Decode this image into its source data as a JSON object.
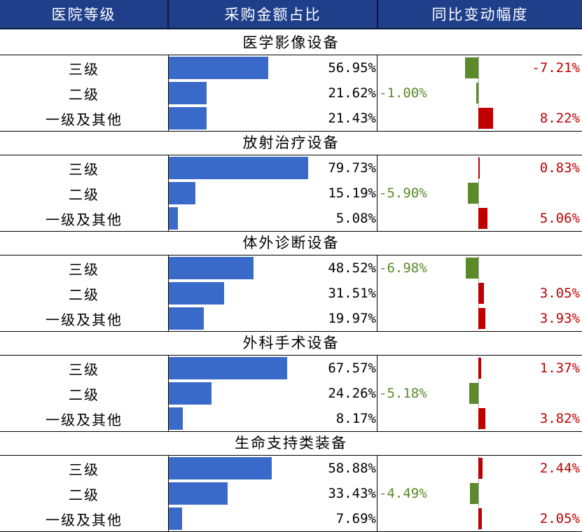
{
  "headers": [
    "医院等级",
    "采购金额占比",
    "同比变动幅度"
  ],
  "colors": {
    "header_bg": "#1f3f8a",
    "share_bar": "#3a6ac9",
    "positive": "#c00000",
    "negative": "#5a8a2a"
  },
  "chart_data": {
    "type": "table",
    "share_max": 100,
    "change_range": [
      -10,
      10
    ],
    "groups": [
      {
        "name": "医学影像设备",
        "rows": [
          {
            "label": "三级",
            "share": 56.95,
            "share_label": "56.95%",
            "change": -7.21,
            "change_label": "-7.21%"
          },
          {
            "label": "二级",
            "share": 21.62,
            "share_label": "21.62%",
            "change": -1.0,
            "change_label": "-1.00%"
          },
          {
            "label": "一级及其他",
            "share": 21.43,
            "share_label": "21.43%",
            "change": 8.22,
            "change_label": "8.22%"
          }
        ]
      },
      {
        "name": "放射治疗设备",
        "rows": [
          {
            "label": "三级",
            "share": 79.73,
            "share_label": "79.73%",
            "change": 0.83,
            "change_label": "0.83%"
          },
          {
            "label": "二级",
            "share": 15.19,
            "share_label": "15.19%",
            "change": -5.9,
            "change_label": "-5.90%"
          },
          {
            "label": "一级及其他",
            "share": 5.08,
            "share_label": "5.08%",
            "change": 5.06,
            "change_label": "5.06%"
          }
        ]
      },
      {
        "name": "体外诊断设备",
        "rows": [
          {
            "label": "三级",
            "share": 48.52,
            "share_label": "48.52%",
            "change": -6.98,
            "change_label": "-6.98%"
          },
          {
            "label": "二级",
            "share": 31.51,
            "share_label": "31.51%",
            "change": 3.05,
            "change_label": "3.05%"
          },
          {
            "label": "一级及其他",
            "share": 19.97,
            "share_label": "19.97%",
            "change": 3.93,
            "change_label": "3.93%"
          }
        ]
      },
      {
        "name": "外科手术设备",
        "rows": [
          {
            "label": "三级",
            "share": 67.57,
            "share_label": "67.57%",
            "change": 1.37,
            "change_label": "1.37%"
          },
          {
            "label": "二级",
            "share": 24.26,
            "share_label": "24.26%",
            "change": -5.18,
            "change_label": "-5.18%"
          },
          {
            "label": "一级及其他",
            "share": 8.17,
            "share_label": "8.17%",
            "change": 3.82,
            "change_label": "3.82%"
          }
        ]
      },
      {
        "name": "生命支持类装备",
        "rows": [
          {
            "label": "三级",
            "share": 58.88,
            "share_label": "58.88%",
            "change": 2.44,
            "change_label": "2.44%"
          },
          {
            "label": "二级",
            "share": 33.43,
            "share_label": "33.43%",
            "change": -4.49,
            "change_label": "-4.49%"
          },
          {
            "label": "一级及其他",
            "share": 7.69,
            "share_label": "7.69%",
            "change": 2.05,
            "change_label": "2.05%"
          }
        ]
      }
    ]
  }
}
